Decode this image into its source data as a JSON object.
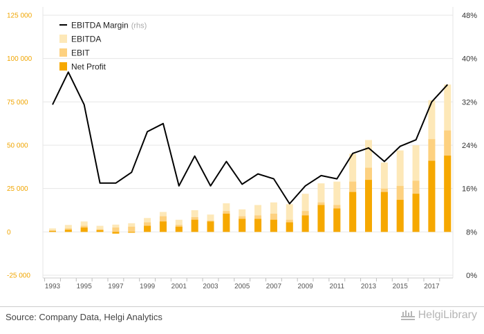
{
  "chart_data": {
    "type": "bar",
    "categories": [
      "1993",
      "1994",
      "1995",
      "1996",
      "1997",
      "1998",
      "1999",
      "2000",
      "2001",
      "2002",
      "2003",
      "2004",
      "2005",
      "2006",
      "2007",
      "2008",
      "2009",
      "2010",
      "2011",
      "2012",
      "2013",
      "2014",
      "2015",
      "2016",
      "2017",
      "2018"
    ],
    "x_tick_labels": [
      "1993",
      "1995",
      "1997",
      "1999",
      "2001",
      "2003",
      "2005",
      "2007",
      "2009",
      "2011",
      "2013",
      "2015",
      "2017"
    ],
    "left_axis": {
      "ylim": [
        -25000,
        125000
      ],
      "ticks": [
        -25000,
        0,
        25000,
        50000,
        75000,
        100000,
        125000
      ],
      "tick_labels": [
        "-25 000",
        "0",
        "25 000",
        "50 000",
        "75 000",
        "100 000",
        "125 000"
      ]
    },
    "right_axis": {
      "ylim": [
        0,
        48
      ],
      "ticks": [
        0,
        8,
        16,
        24,
        32,
        40,
        48
      ],
      "tick_labels": [
        "0%",
        "8%",
        "16%",
        "24%",
        "32%",
        "40%",
        "48%"
      ]
    },
    "grid": true,
    "legend_position": "top-left",
    "series": [
      {
        "name": "EBITDA",
        "color": "#fde8b8",
        "values": [
          2000,
          4000,
          6000,
          3500,
          4200,
          5000,
          8000,
          11500,
          7000,
          12500,
          10000,
          16500,
          13000,
          15500,
          17000,
          16000,
          22000,
          28000,
          29000,
          45000,
          53000,
          40000,
          47000,
          50000,
          76000,
          85000
        ]
      },
      {
        "name": "EBIT",
        "color": "#fdd180",
        "values": [
          900,
          2000,
          3500,
          1500,
          2500,
          3000,
          5500,
          9000,
          4000,
          8500,
          6500,
          12000,
          9000,
          9500,
          10500,
          7000,
          12000,
          17000,
          15500,
          29000,
          37000,
          25000,
          26500,
          29500,
          53500,
          58500
        ]
      },
      {
        "name": "Net Profit",
        "color": "#f6a800",
        "values": [
          500,
          1200,
          2500,
          1000,
          -1000,
          -500,
          3500,
          6000,
          3000,
          7000,
          6000,
          10500,
          7500,
          7500,
          7000,
          5500,
          9500,
          15500,
          13500,
          23000,
          30000,
          23000,
          18500,
          22000,
          41000,
          44000
        ]
      },
      {
        "name": "EBITDA Margin",
        "axis": "rhs",
        "color": "#000000",
        "values": [
          31.5,
          37.5,
          31.5,
          17,
          17,
          19,
          26.5,
          28,
          16.5,
          22,
          16.5,
          21,
          16.8,
          18.7,
          17.8,
          13.2,
          16.5,
          18.4,
          17.8,
          22.5,
          23.5,
          21,
          23.8,
          25,
          32,
          35.2
        ]
      }
    ],
    "legend": {
      "items": [
        "EBITDA Margin",
        "EBITDA",
        "EBIT",
        "Net Profit"
      ],
      "rhs_note": "(rhs)"
    }
  },
  "footer": {
    "source": "Source: Company Data, Helgi Analytics",
    "brand": "HelgiLibrary"
  }
}
